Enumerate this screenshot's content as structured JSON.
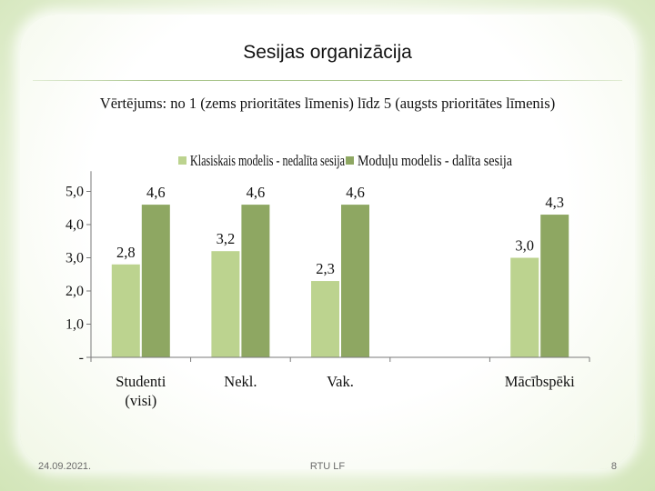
{
  "slide": {
    "title": "Sesijas organizācija",
    "subtitle": "Vērtējums: no 1 (zems prioritātes līmenis) līdz 5 (augsts prioritātes līmenis)"
  },
  "footer": {
    "date": "24.09.2021.",
    "center": "RTU LF",
    "page": "8"
  },
  "colors": {
    "series1": "#bcd38f",
    "series2": "#8ea762",
    "axis": "#7a7a7a"
  },
  "chart_data": {
    "type": "bar",
    "categories": [
      "Studenti (visi)",
      "Nekl.",
      "Vak.",
      "",
      "Mācībspēki"
    ],
    "category_lines": [
      [
        "Studenti",
        "(visi)"
      ],
      [
        "Nekl."
      ],
      [
        "Vak."
      ],
      [
        ""
      ],
      [
        "Mācībspēki"
      ]
    ],
    "series": [
      {
        "name": "Klasiskais modelis - nedalīta sesija",
        "values": [
          2.8,
          3.2,
          2.3,
          null,
          3.0
        ],
        "labels": [
          "2,8",
          "3,2",
          "2,3",
          "",
          "3,0"
        ]
      },
      {
        "name": "Moduļu modelis - dalīta sesija",
        "values": [
          4.6,
          4.6,
          4.6,
          null,
          4.3
        ],
        "labels": [
          "4,6",
          "4,6",
          "4,6",
          "",
          "4,3"
        ]
      }
    ],
    "yticks": [
      0,
      1,
      2,
      3,
      4,
      5
    ],
    "ytick_labels": [
      "-",
      "1,0",
      "2,0",
      "3,0",
      "4,0",
      "5,0"
    ],
    "ylim": [
      0,
      5.5
    ],
    "legend_position": "top",
    "grid": false
  }
}
